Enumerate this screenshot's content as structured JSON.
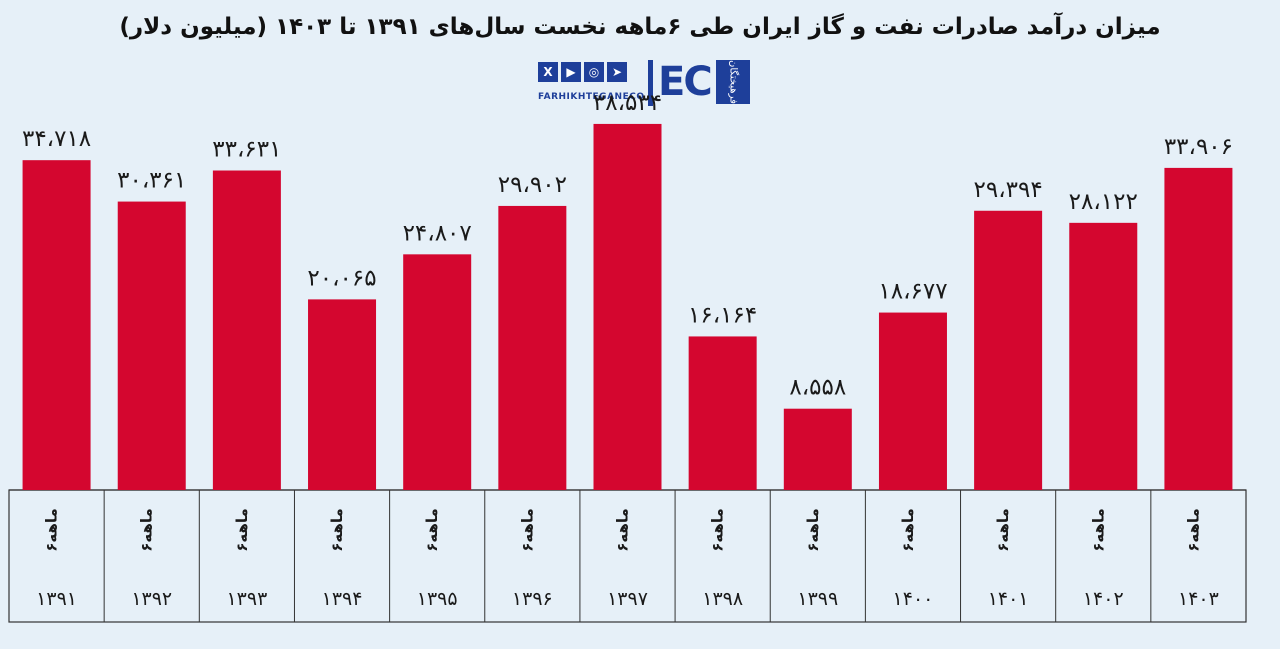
{
  "chart_data": {
    "type": "bar",
    "title": "میزان درآمد صادرات نفت و گاز ایران طی ۶ماهه نخست سال‌های ۱۳۹۱ تا ۱۴۰۳ (میلیون دلار)",
    "categories": [
      "۱۳۹۱",
      "۱۳۹۲",
      "۱۳۹۳",
      "۱۳۹۴",
      "۱۳۹۵",
      "۱۳۹۶",
      "۱۳۹۷",
      "۱۳۹۸",
      "۱۳۹۹",
      "۱۴۰۰",
      "۱۴۰۱",
      "۱۴۰۲",
      "۱۴۰۳"
    ],
    "period_label": "۶ماهه",
    "values": [
      34718,
      30361,
      33631,
      20065,
      24807,
      29902,
      38534,
      16164,
      8558,
      18677,
      29394,
      28122,
      33906
    ],
    "value_labels": [
      "۳۴،۷۱۸",
      "۳۰،۳۶۱",
      "۳۳،۶۳۱",
      "۲۰،۰۶۵",
      "۲۴،۸۰۷",
      "۲۹،۹۰۲",
      "۳۸،۵۳۴",
      "۱۶،۱۶۴",
      "۸،۵۵۸",
      "۱۸،۶۷۷",
      "۲۹،۳۹۴",
      "۲۸،۱۲۲",
      "۳۳،۹۰۶"
    ],
    "ylim": [
      0,
      40000
    ],
    "grid": false,
    "bar_color": "#d4062f"
  },
  "branding": {
    "site": "FARHIKHTEGANECO",
    "logo_letters": "EC",
    "logo_box_text": "فرهیختگان",
    "social_icons": [
      "x-icon",
      "youtube-icon",
      "instagram-icon",
      "telegram-icon"
    ],
    "social_glyphs": [
      "X",
      "▶",
      "◎",
      "➤"
    ],
    "brand_color": "#1e3f9a"
  },
  "colors": {
    "background": "#e6f0f8",
    "text": "#1a1a1a",
    "table_border": "#333333"
  }
}
